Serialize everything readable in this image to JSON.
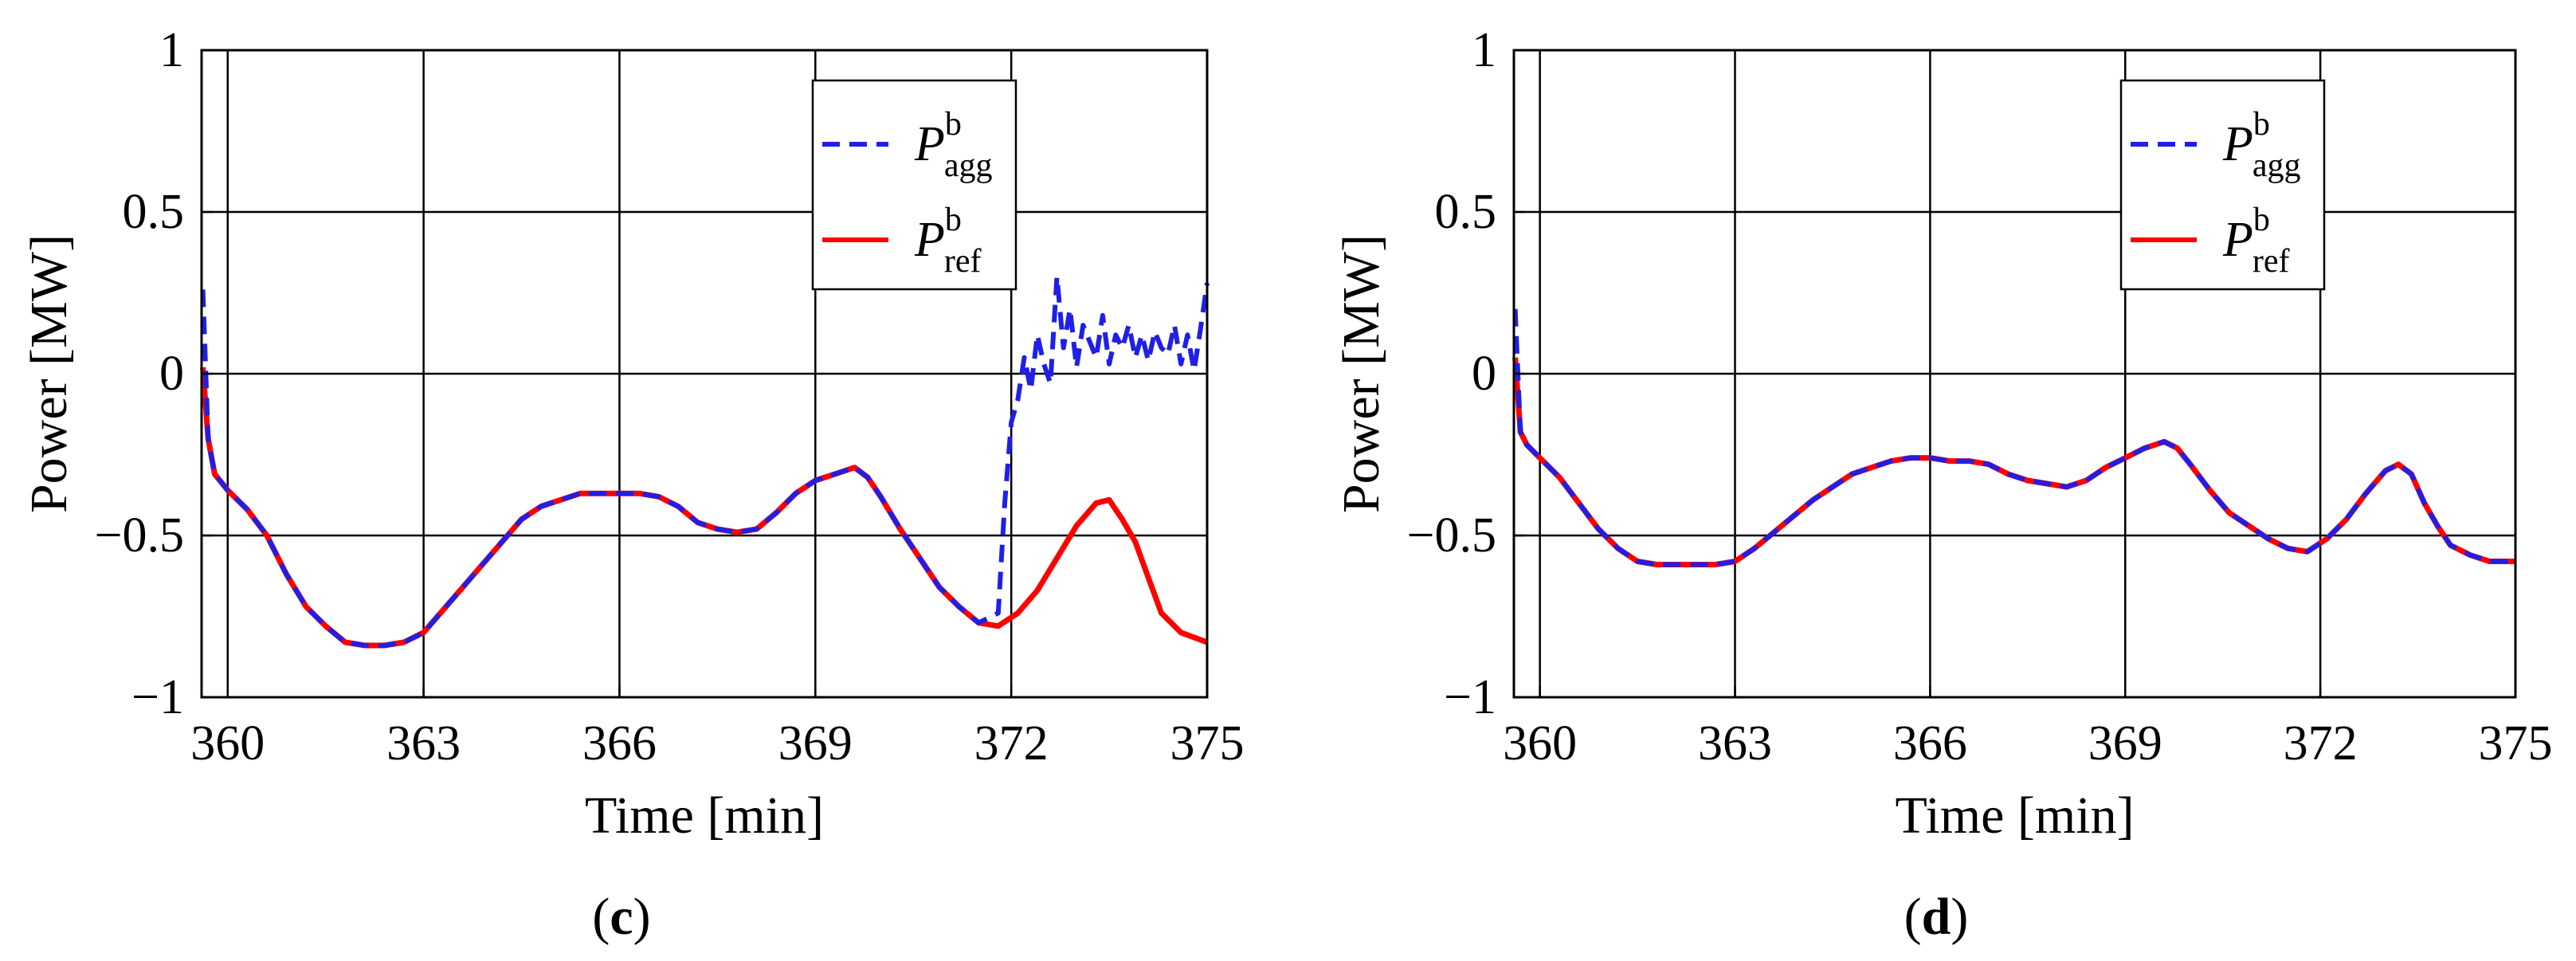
{
  "colors": {
    "agg": "#1f1fe6",
    "ref": "#ff0000",
    "axis": "#000000",
    "grid": "#000000"
  },
  "chart_data": [
    {
      "type": "line",
      "panel_label": "c",
      "xlabel": "Time [min]",
      "ylabel": "Power [MW]",
      "xlim": [
        359.6,
        375
      ],
      "ylim": [
        -1,
        1
      ],
      "xticks": [
        360,
        363,
        366,
        369,
        372,
        375
      ],
      "yticks": [
        -1,
        -0.5,
        0,
        0.5,
        1
      ],
      "xtick_labels": [
        "360",
        "363",
        "366",
        "369",
        "372",
        "375"
      ],
      "ytick_labels": [
        "−1",
        "−0.5",
        "0",
        "0.5",
        "1"
      ],
      "legend": {
        "position": "top-right",
        "entries": [
          {
            "key": "agg",
            "symbol": "P",
            "sup": "b",
            "sub": "agg",
            "style": "dashed"
          },
          {
            "key": "ref",
            "symbol": "P",
            "sup": "b",
            "sub": "ref",
            "style": "solid"
          }
        ]
      },
      "series": [
        {
          "key": "ref",
          "name": "P^b_ref",
          "style": "solid",
          "x": [
            359.62,
            359.7,
            359.8,
            360.0,
            360.3,
            360.6,
            360.9,
            361.2,
            361.5,
            361.8,
            362.1,
            362.4,
            362.7,
            363.0,
            363.3,
            363.6,
            363.9,
            364.2,
            364.5,
            364.8,
            365.1,
            365.4,
            365.7,
            366.0,
            366.3,
            366.6,
            366.9,
            367.2,
            367.5,
            367.8,
            368.1,
            368.4,
            368.7,
            369.0,
            369.3,
            369.6,
            369.8,
            370.0,
            370.3,
            370.6,
            370.9,
            371.2,
            371.5,
            371.8,
            372.1,
            372.4,
            372.7,
            373.0,
            373.3,
            373.5,
            373.7,
            373.9,
            374.1,
            374.3,
            374.6,
            375.0
          ],
          "y": [
            0.02,
            -0.2,
            -0.31,
            -0.36,
            -0.42,
            -0.5,
            -0.62,
            -0.72,
            -0.78,
            -0.83,
            -0.84,
            -0.84,
            -0.83,
            -0.8,
            -0.73,
            -0.66,
            -0.59,
            -0.52,
            -0.45,
            -0.41,
            -0.39,
            -0.37,
            -0.37,
            -0.37,
            -0.37,
            -0.38,
            -0.41,
            -0.46,
            -0.48,
            -0.49,
            -0.48,
            -0.43,
            -0.37,
            -0.33,
            -0.31,
            -0.29,
            -0.32,
            -0.38,
            -0.48,
            -0.57,
            -0.66,
            -0.72,
            -0.77,
            -0.78,
            -0.74,
            -0.67,
            -0.57,
            -0.47,
            -0.4,
            -0.39,
            -0.45,
            -0.52,
            -0.63,
            -0.74,
            -0.8,
            -0.83
          ]
        },
        {
          "key": "agg",
          "name": "P^b_agg",
          "style": "dashed",
          "x": [
            359.62,
            359.7,
            359.8,
            360.0,
            360.3,
            360.6,
            360.9,
            361.2,
            361.5,
            361.8,
            362.1,
            362.4,
            362.7,
            363.0,
            363.3,
            363.6,
            363.9,
            364.2,
            364.5,
            364.8,
            365.1,
            365.4,
            365.7,
            366.0,
            366.3,
            366.6,
            366.9,
            367.2,
            367.5,
            367.8,
            368.1,
            368.4,
            368.7,
            369.0,
            369.3,
            369.6,
            369.8,
            370.0,
            370.3,
            370.6,
            370.9,
            371.2,
            371.5,
            371.8,
            371.9,
            372.0,
            372.1,
            372.2,
            372.3,
            372.4,
            372.5,
            372.6,
            372.7,
            372.8,
            372.9,
            373.0,
            373.1,
            373.2,
            373.3,
            373.4,
            373.5,
            373.6,
            373.7,
            373.8,
            373.9,
            374.0,
            374.1,
            374.2,
            374.3,
            374.4,
            374.5,
            374.6,
            374.7,
            374.8,
            374.9,
            375.0
          ],
          "y": [
            0.26,
            -0.2,
            -0.31,
            -0.36,
            -0.42,
            -0.5,
            -0.62,
            -0.72,
            -0.78,
            -0.83,
            -0.84,
            -0.84,
            -0.83,
            -0.8,
            -0.73,
            -0.66,
            -0.59,
            -0.52,
            -0.45,
            -0.41,
            -0.39,
            -0.37,
            -0.37,
            -0.37,
            -0.37,
            -0.38,
            -0.41,
            -0.46,
            -0.48,
            -0.49,
            -0.48,
            -0.43,
            -0.37,
            -0.33,
            -0.31,
            -0.29,
            -0.32,
            -0.38,
            -0.48,
            -0.57,
            -0.66,
            -0.72,
            -0.77,
            -0.74,
            -0.4,
            -0.15,
            -0.08,
            0.05,
            -0.05,
            0.12,
            0.03,
            -0.03,
            0.3,
            0.08,
            0.2,
            0.02,
            0.15,
            0.1,
            0.05,
            0.18,
            0.03,
            0.12,
            0.08,
            0.15,
            0.05,
            0.12,
            0.04,
            0.13,
            0.08,
            0.06,
            0.15,
            0.03,
            0.12,
            0.01,
            0.14,
            0.28
          ]
        }
      ]
    },
    {
      "type": "line",
      "panel_label": "d",
      "xlabel": "Time [min]",
      "ylabel": "Power [MW]",
      "xlim": [
        359.6,
        375
      ],
      "ylim": [
        -1,
        1
      ],
      "xticks": [
        360,
        363,
        366,
        369,
        372,
        375
      ],
      "yticks": [
        -1,
        -0.5,
        0,
        0.5,
        1
      ],
      "xtick_labels": [
        "360",
        "363",
        "366",
        "369",
        "372",
        "375"
      ],
      "ytick_labels": [
        "−1",
        "−0.5",
        "0",
        "0.5",
        "1"
      ],
      "legend": {
        "position": "top-right",
        "entries": [
          {
            "key": "agg",
            "symbol": "P",
            "sup": "b",
            "sub": "agg",
            "style": "dashed"
          },
          {
            "key": "ref",
            "symbol": "P",
            "sup": "b",
            "sub": "ref",
            "style": "solid"
          }
        ]
      },
      "series": [
        {
          "key": "ref",
          "name": "P^b_ref",
          "style": "solid",
          "x": [
            359.62,
            359.7,
            359.8,
            360.0,
            360.3,
            360.6,
            360.9,
            361.2,
            361.5,
            361.8,
            362.1,
            362.4,
            362.7,
            363.0,
            363.3,
            363.6,
            363.9,
            364.2,
            364.5,
            364.8,
            365.1,
            365.4,
            365.7,
            366.0,
            366.3,
            366.6,
            366.9,
            367.2,
            367.5,
            367.8,
            368.1,
            368.4,
            368.7,
            369.0,
            369.3,
            369.6,
            369.8,
            370.0,
            370.3,
            370.6,
            370.9,
            371.2,
            371.5,
            371.8,
            372.1,
            372.4,
            372.7,
            373.0,
            373.2,
            373.4,
            373.6,
            373.8,
            374.0,
            374.3,
            374.6,
            375.0
          ],
          "y": [
            0.05,
            -0.18,
            -0.22,
            -0.26,
            -0.32,
            -0.4,
            -0.48,
            -0.54,
            -0.58,
            -0.59,
            -0.59,
            -0.59,
            -0.59,
            -0.58,
            -0.54,
            -0.49,
            -0.44,
            -0.39,
            -0.35,
            -0.31,
            -0.29,
            -0.27,
            -0.26,
            -0.26,
            -0.27,
            -0.27,
            -0.28,
            -0.31,
            -0.33,
            -0.34,
            -0.35,
            -0.33,
            -0.29,
            -0.26,
            -0.23,
            -0.21,
            -0.23,
            -0.28,
            -0.36,
            -0.43,
            -0.47,
            -0.51,
            -0.54,
            -0.55,
            -0.51,
            -0.45,
            -0.37,
            -0.3,
            -0.28,
            -0.31,
            -0.4,
            -0.47,
            -0.53,
            -0.56,
            -0.58,
            -0.58
          ]
        },
        {
          "key": "agg",
          "name": "P^b_agg",
          "style": "dashed",
          "x": [
            359.62,
            359.7,
            359.8,
            360.0,
            360.3,
            360.6,
            360.9,
            361.2,
            361.5,
            361.8,
            362.1,
            362.4,
            362.7,
            363.0,
            363.3,
            363.6,
            363.9,
            364.2,
            364.5,
            364.8,
            365.1,
            365.4,
            365.7,
            366.0,
            366.3,
            366.6,
            366.9,
            367.2,
            367.5,
            367.8,
            368.1,
            368.4,
            368.7,
            369.0,
            369.3,
            369.6,
            369.8,
            370.0,
            370.3,
            370.6,
            370.9,
            371.2,
            371.5,
            371.8,
            372.1,
            372.4,
            372.7,
            373.0,
            373.2,
            373.4,
            373.6,
            373.8,
            374.0,
            374.3,
            374.6,
            375.0
          ],
          "y": [
            0.2,
            -0.18,
            -0.22,
            -0.26,
            -0.32,
            -0.4,
            -0.48,
            -0.54,
            -0.58,
            -0.59,
            -0.59,
            -0.59,
            -0.59,
            -0.58,
            -0.54,
            -0.49,
            -0.44,
            -0.39,
            -0.35,
            -0.31,
            -0.29,
            -0.27,
            -0.26,
            -0.26,
            -0.27,
            -0.27,
            -0.28,
            -0.31,
            -0.33,
            -0.34,
            -0.35,
            -0.33,
            -0.29,
            -0.26,
            -0.23,
            -0.21,
            -0.23,
            -0.28,
            -0.36,
            -0.43,
            -0.47,
            -0.51,
            -0.54,
            -0.55,
            -0.51,
            -0.45,
            -0.37,
            -0.3,
            -0.28,
            -0.31,
            -0.4,
            -0.47,
            -0.53,
            -0.56,
            -0.58,
            -0.58
          ]
        }
      ]
    }
  ]
}
